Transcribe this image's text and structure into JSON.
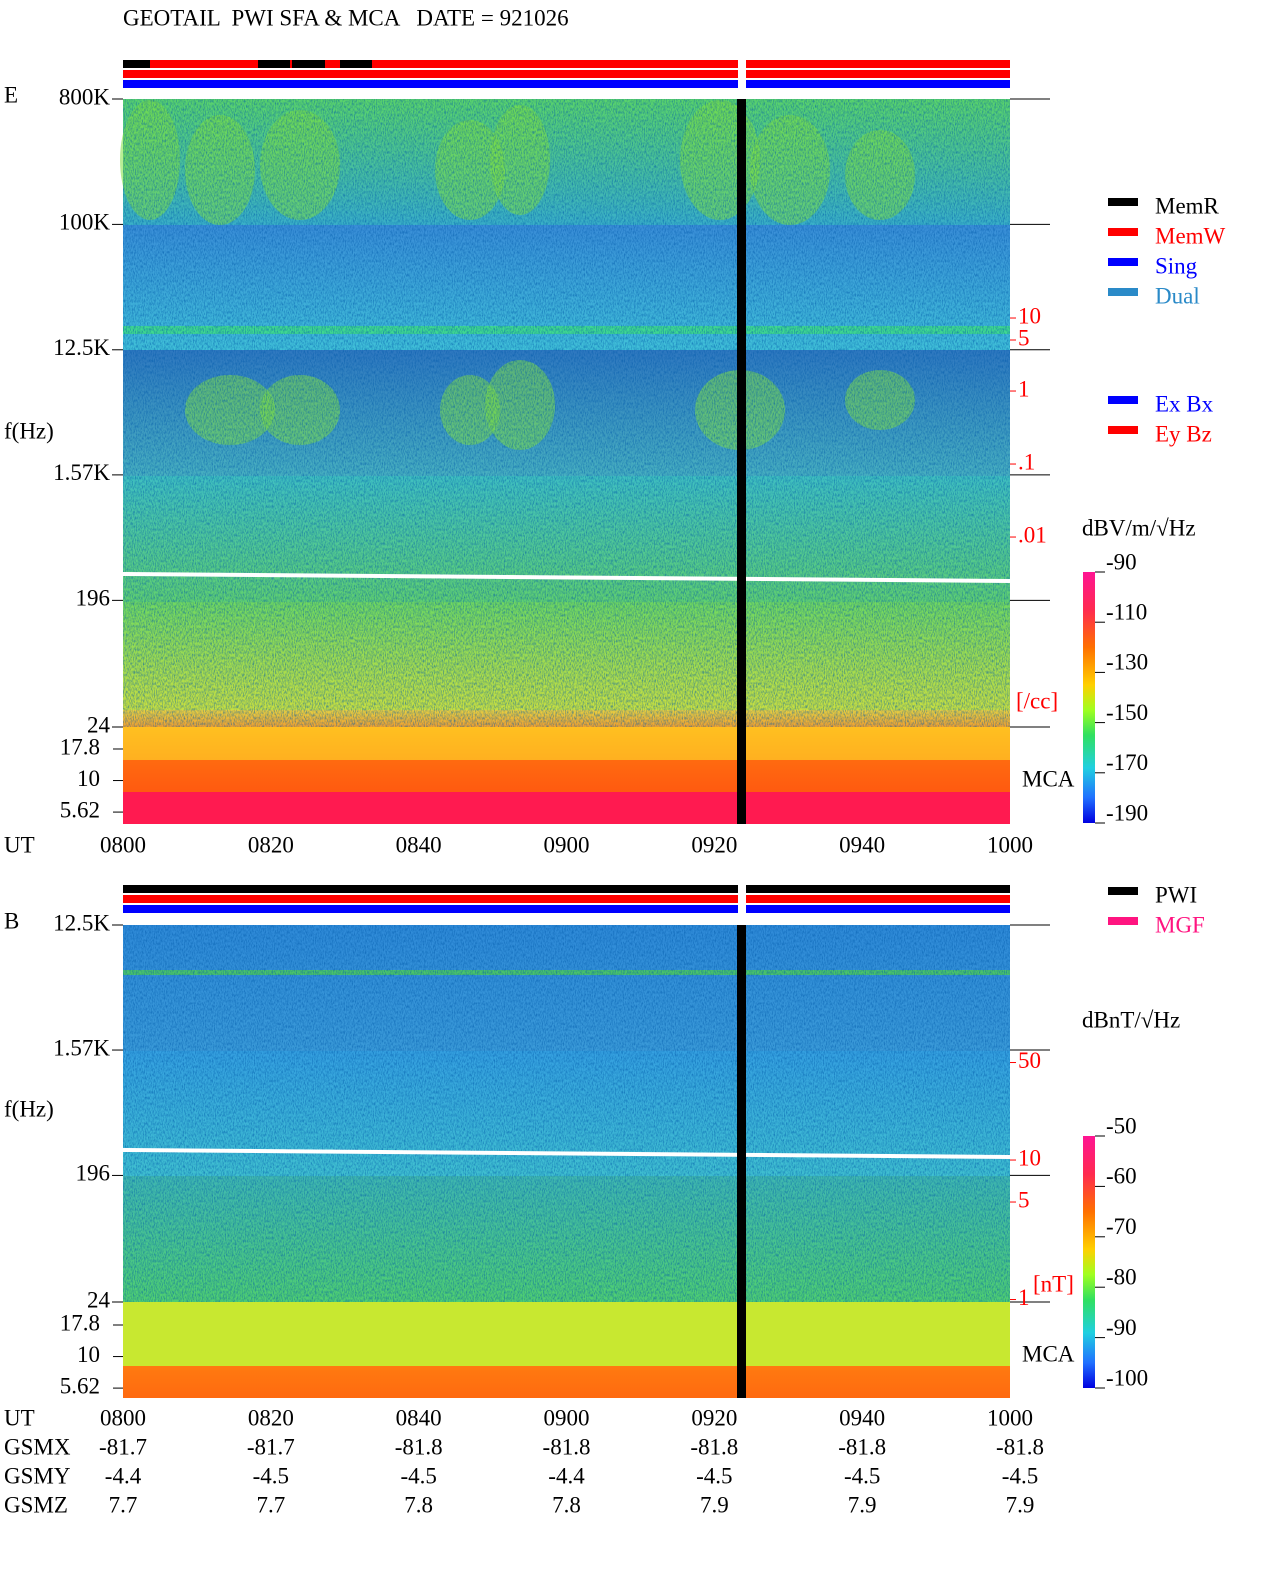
{
  "title": "GEOTAIL  PWI SFA & MCA   DATE = 921026",
  "chart_data": [
    {
      "type": "spectrogram",
      "panel_label": "E",
      "y_label": "f(Hz)",
      "x_label": "UT",
      "log_y": true,
      "ylim": [
        24,
        800000
      ],
      "yticks": [
        {
          "value": 800000,
          "label": "800K"
        },
        {
          "value": 100000,
          "label": "100K"
        },
        {
          "value": 12500,
          "label": "12.5K"
        },
        {
          "value": 1570,
          "label": "1.57K"
        },
        196,
        24
      ],
      "mca_label": "MCA",
      "mca_ylim": [
        4.52,
        26.6
      ],
      "mca_yticks": [
        17.8,
        10,
        5.62
      ],
      "y2lim": [
        2.5e-05,
        10000
      ],
      "y2ticks": [
        10,
        5,
        1,
        {
          "value": 0.1,
          "label": ".1"
        },
        {
          "value": 0.01,
          "label": ".01"
        }
      ],
      "y2_label": "[/cc]",
      "y2_color": "#ff0000",
      "x_labels": [
        "0800",
        "0820",
        "0840",
        "0900",
        "0920",
        "0940",
        "1000"
      ],
      "colorbar": {
        "title": "dBV/m/√Hz",
        "clim": [
          -190,
          -90
        ],
        "ticks": [
          -90,
          -110,
          -130,
          -150,
          -170,
          -190
        ]
      },
      "legend": [
        {
          "name": "MemR",
          "color": "#000000"
        },
        {
          "name": "MemW",
          "color": "#ff0000"
        },
        {
          "name": "Sing",
          "color": "#0000ff"
        },
        {
          "name": "Dual",
          "color": "#2a8ac8"
        }
      ],
      "legend2": [
        {
          "name": "Ex Bx",
          "color": "#0000ff"
        },
        {
          "name": "Ey Bz",
          "color": "#ff0000"
        }
      ]
    },
    {
      "type": "spectrogram",
      "panel_label": "B",
      "y_label": "f(Hz)",
      "x_label": "UT",
      "log_y": true,
      "ylim": [
        24,
        12500
      ],
      "yticks": [
        {
          "value": 12500,
          "label": "12.5K"
        },
        {
          "value": 1570,
          "label": "1.57K"
        },
        196,
        24
      ],
      "mca_label": "MCA",
      "mca_ylim": [
        4.69,
        27.1
      ],
      "mca_yticks": [
        17.8,
        10,
        5.62
      ],
      "y2lim": [
        0.96,
        484
      ],
      "y2ticks": [
        50,
        10,
        5,
        1
      ],
      "y2_label": "[nT]",
      "y2_color": "#ff0000",
      "x_labels": [
        "0800",
        "0820",
        "0840",
        "0900",
        "0920",
        "0940",
        "1000"
      ],
      "colorbar": {
        "title": "dBnT/√Hz",
        "clim": [
          -100,
          -50
        ],
        "ticks": [
          -50,
          -60,
          -70,
          -80,
          -90,
          -100
        ]
      },
      "legend": [
        {
          "name": "PWI",
          "color": "#000000"
        },
        {
          "name": "MGF",
          "color": "#ff1480"
        }
      ]
    }
  ],
  "orbit": {
    "labels": [
      "GSMX",
      "GSMY",
      "GSMZ"
    ],
    "rows": [
      [
        -81.7,
        -81.7,
        -81.8,
        -81.8,
        -81.8,
        -81.8,
        -81.8
      ],
      [
        -4.4,
        -4.5,
        -4.5,
        -4.4,
        -4.5,
        -4.5,
        -4.5
      ],
      [
        7.7,
        7.7,
        7.8,
        7.8,
        7.9,
        7.9,
        7.9
      ]
    ]
  }
}
